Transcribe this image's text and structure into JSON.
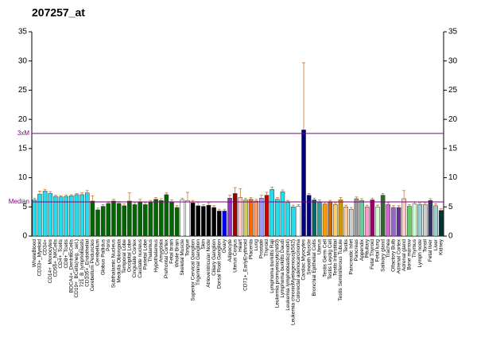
{
  "chart_data": {
    "type": "bar",
    "title": "207257_at",
    "categories": [
      "WholeBlood",
      "CD33+_Myeloid",
      "CD34+",
      "CD14+_Monocytes",
      "CD56+_NKCells",
      "CD4+_Tcells",
      "CD8+_Tcells",
      "BDCA4+_DentriticCells",
      "CD19+_BCells(neg._sel.)",
      "721_B_lymphoblasts",
      "CD105+_Endothelial",
      "Cerebellum Peduncles",
      "Cerebellum",
      "Globus Pallidus",
      "Pons",
      "Subthalamic Nucleus",
      "Medulla Oblongata",
      "Temporal Lobe",
      "Occipital Lobe",
      "Cingulate Cortex",
      "Caudate nucleus",
      "Parietal Lobe",
      "Thalamus",
      "Hypothalamus",
      "Amygdala",
      "Prefrontal Cortex",
      "Fetal brain",
      "Whole Brain",
      "Skeletal Muscle",
      "Tongue",
      "Superior Cervical Ganglion",
      "Trigeminal Ganglion",
      "Skin",
      "Atrioventricular Node",
      "Ciliary Ganglion",
      "Dorsal Root Ganglion",
      "Ovary",
      "Adipocyte",
      "Uterus Corpus",
      "Heart",
      "CD71+_EarlyErythroid",
      "Placenta",
      "Lung",
      "Prostate",
      "Thyroid",
      "Lymphoma burkitts Raji",
      "Leukemia promyelocytic(hl60)",
      "Lymphoma burkitts Daudi",
      "Leukemia lymphoblastic(molt4)",
      "Leukemia chronicMyelogenous(k562)",
      "Colorectal adenocarcinoma",
      "Cardiac Myocytes",
      "Smooth Muscle",
      "Bronchial Epithelial Cells",
      "Uterus",
      "Testis Germ Cell",
      "Testis Leydig Cell",
      "Testis Interstitial",
      "Testis Seminiferous Tubule",
      "Testis",
      "Pancreatic Islet",
      "Pancreas",
      "Appendix",
      "Pituitary",
      "Fetal Thyroid",
      "Fetal lung",
      "Salivary gland",
      "Trachea",
      "Olfactory Bulb",
      "Adrenal Cortex",
      "Adrenal gland",
      "Bone marrow",
      "Thymus",
      "Lymph node",
      "Tonsil",
      "Fetal liver",
      "Liver",
      "Kidney"
    ],
    "values": [
      6.2,
      7.2,
      7.7,
      7.3,
      6.8,
      6.7,
      6.8,
      6.9,
      7.1,
      7.1,
      7.4,
      6.0,
      4.5,
      5.1,
      5.6,
      6.0,
      5.6,
      5.2,
      6.0,
      5.4,
      5.9,
      5.4,
      5.8,
      6.3,
      6.1,
      7.1,
      5.9,
      4.9,
      6.2,
      6.1,
      5.7,
      5.2,
      5.1,
      5.3,
      4.9,
      4.3,
      4.3,
      6.5,
      7.3,
      6.6,
      6.2,
      6.3,
      6.0,
      6.5,
      7.0,
      8.0,
      6.3,
      7.6,
      5.8,
      5.0,
      5.1,
      18.2,
      7.0,
      6.2,
      5.9,
      5.5,
      5.8,
      5.4,
      6.2,
      5.0,
      4.6,
      6.4,
      6.1,
      5.0,
      6.2,
      5.0,
      7.0,
      5.4,
      4.9,
      4.9,
      6.4,
      5.1,
      5.5,
      5.4,
      5.4,
      6.1,
      5.2,
      4.4
    ],
    "errors": [
      0.3,
      0.5,
      0.3,
      0.3,
      0.2,
      0.2,
      0.2,
      0.2,
      0.2,
      0.3,
      0.4,
      0.9,
      0.3,
      0.3,
      0.3,
      0.3,
      0.3,
      0.3,
      1.4,
      0.3,
      0.4,
      0.3,
      0.3,
      0.3,
      0.3,
      0.3,
      0.3,
      0.3,
      0.3,
      1.4,
      0.4,
      0.6,
      0.3,
      0.4,
      0.3,
      0.3,
      0.3,
      0.5,
      1.0,
      1.5,
      0.3,
      0.3,
      0.3,
      0.5,
      0.5,
      0.4,
      0.3,
      0.3,
      0.3,
      0.3,
      0.3,
      11.5,
      0.3,
      0.3,
      0.3,
      0.3,
      0.3,
      0.3,
      0.4,
      0.3,
      0.3,
      0.3,
      0.3,
      0.3,
      0.3,
      0.3,
      0.3,
      0.3,
      0.3,
      0.3,
      1.4,
      0.3,
      0.3,
      0.3,
      0.3,
      0.3,
      0.3,
      0.3
    ],
    "colors": [
      "#22ddee",
      "#22ddee",
      "#22ddee",
      "#22ddee",
      "#22ddee",
      "#22ddee",
      "#22ddee",
      "#22ddee",
      "#22ddee",
      "#22ddee",
      "#22ddee",
      "#006600",
      "#006600",
      "#006600",
      "#006600",
      "#006600",
      "#006600",
      "#006600",
      "#006600",
      "#006600",
      "#006600",
      "#006600",
      "#006600",
      "#006600",
      "#006600",
      "#006600",
      "#006600",
      "#006600",
      "#ffffff",
      "#ffffff",
      "#000000",
      "#000000",
      "#000000",
      "#000000",
      "#000000",
      "#000000",
      "#0000ff",
      "#9933cc",
      "#990000",
      "#ffcccc",
      "#cccc66",
      "#ff6600",
      "#ff9966",
      "#9999ff",
      "#cc0000",
      "#22ddee",
      "#22ddee",
      "#22ddee",
      "#22ddee",
      "#22ddee",
      "#ffffff",
      "#000080",
      "#000080",
      "#006666",
      "#339999",
      "#ff9900",
      "#cc6600",
      "#ffcc66",
      "#cc9900",
      "#ffcc99",
      "#cccccc",
      "#999999",
      "#66cc99",
      "#ff99cc",
      "#990066",
      "#ccffcc",
      "#336633",
      "#cc66cc",
      "#9966cc",
      "#663399",
      "#ffcccc",
      "#66cc66",
      "#ccffcc",
      "#99cccc",
      "#cccccc",
      "#333366",
      "#99cccc",
      "#003333"
    ],
    "error_color": "#cc7733",
    "ylim": [
      0,
      35
    ],
    "yticks": [
      0,
      5,
      10,
      15,
      20,
      25,
      30,
      35
    ],
    "reference_lines": [
      {
        "label": "Median",
        "value": 5.86
      },
      {
        "label": "3xM",
        "value": 17.58
      }
    ],
    "reference_color": "#800080"
  }
}
